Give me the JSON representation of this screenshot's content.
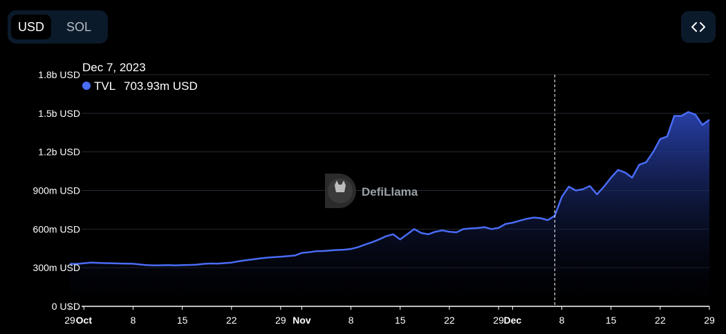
{
  "currency_toggle": {
    "options": [
      "USD",
      "SOL"
    ],
    "selected": "USD"
  },
  "embed_button": {
    "icon": "code-brackets-icon"
  },
  "watermark": {
    "text": "DefiLlama",
    "icon": "defillama-logo-icon"
  },
  "tooltip": {
    "date": "Dec 7, 2023",
    "series": "TVL",
    "value": "703.93m USD",
    "marker_color": "#4a6cf7"
  },
  "colors": {
    "line": "#4a6cf7",
    "fill_top": "#2a43b0",
    "background": "#000000",
    "grid": "#262a33"
  },
  "chart_data": {
    "type": "area",
    "series_name": "TVL",
    "y_ticks": [
      "0 USD",
      "300m USD",
      "600m USD",
      "900m USD",
      "1.2b USD",
      "1.5b USD",
      "1.8b USD"
    ],
    "ylim": [
      0,
      1800
    ],
    "y_unit": "m USD",
    "x_ticks": [
      {
        "label": "29",
        "day": 0,
        "bold": false
      },
      {
        "label": "Oct",
        "day": 2,
        "bold": true
      },
      {
        "label": "8",
        "day": 9,
        "bold": false
      },
      {
        "label": "15",
        "day": 16,
        "bold": false
      },
      {
        "label": "22",
        "day": 23,
        "bold": false
      },
      {
        "label": "29",
        "day": 30,
        "bold": false
      },
      {
        "label": "Nov",
        "day": 33,
        "bold": true
      },
      {
        "label": "8",
        "day": 40,
        "bold": false
      },
      {
        "label": "15",
        "day": 47,
        "bold": false
      },
      {
        "label": "22",
        "day": 54,
        "bold": false
      },
      {
        "label": "29",
        "day": 61,
        "bold": false
      },
      {
        "label": "Dec",
        "day": 63,
        "bold": true
      },
      {
        "label": "8",
        "day": 70,
        "bold": false
      },
      {
        "label": "15",
        "day": 77,
        "bold": false
      },
      {
        "label": "22",
        "day": 84,
        "bold": false
      },
      {
        "label": "29",
        "day": 91,
        "bold": false
      }
    ],
    "hover_day": 69,
    "x": [
      0,
      1,
      2,
      3,
      4,
      5,
      6,
      7,
      8,
      9,
      10,
      11,
      12,
      13,
      14,
      15,
      16,
      17,
      18,
      19,
      20,
      21,
      22,
      23,
      24,
      25,
      26,
      27,
      28,
      29,
      30,
      31,
      32,
      33,
      34,
      35,
      36,
      37,
      38,
      39,
      40,
      41,
      42,
      43,
      44,
      45,
      46,
      47,
      48,
      49,
      50,
      51,
      52,
      53,
      54,
      55,
      56,
      57,
      58,
      59,
      60,
      61,
      62,
      63,
      64,
      65,
      66,
      67,
      68,
      69,
      70,
      71,
      72,
      73,
      74,
      75,
      76,
      77,
      78,
      79,
      80,
      81,
      82,
      83,
      84,
      85,
      86,
      87,
      88,
      89,
      90,
      91
    ],
    "values": [
      330,
      330,
      335,
      340,
      338,
      336,
      334,
      333,
      332,
      331,
      325,
      320,
      318,
      319,
      320,
      318,
      320,
      322,
      324,
      330,
      333,
      332,
      336,
      340,
      350,
      358,
      365,
      372,
      378,
      382,
      385,
      390,
      395,
      415,
      420,
      428,
      430,
      434,
      438,
      440,
      446,
      460,
      480,
      498,
      520,
      545,
      560,
      520,
      560,
      600,
      570,
      560,
      580,
      590,
      580,
      575,
      600,
      605,
      608,
      615,
      600,
      610,
      640,
      650,
      665,
      680,
      690,
      685,
      670,
      703.93,
      850,
      930,
      900,
      910,
      935,
      870,
      930,
      1000,
      1060,
      1040,
      1000,
      1100,
      1120,
      1200,
      1300,
      1320,
      1480,
      1480,
      1510,
      1490,
      1410,
      1450
    ]
  }
}
